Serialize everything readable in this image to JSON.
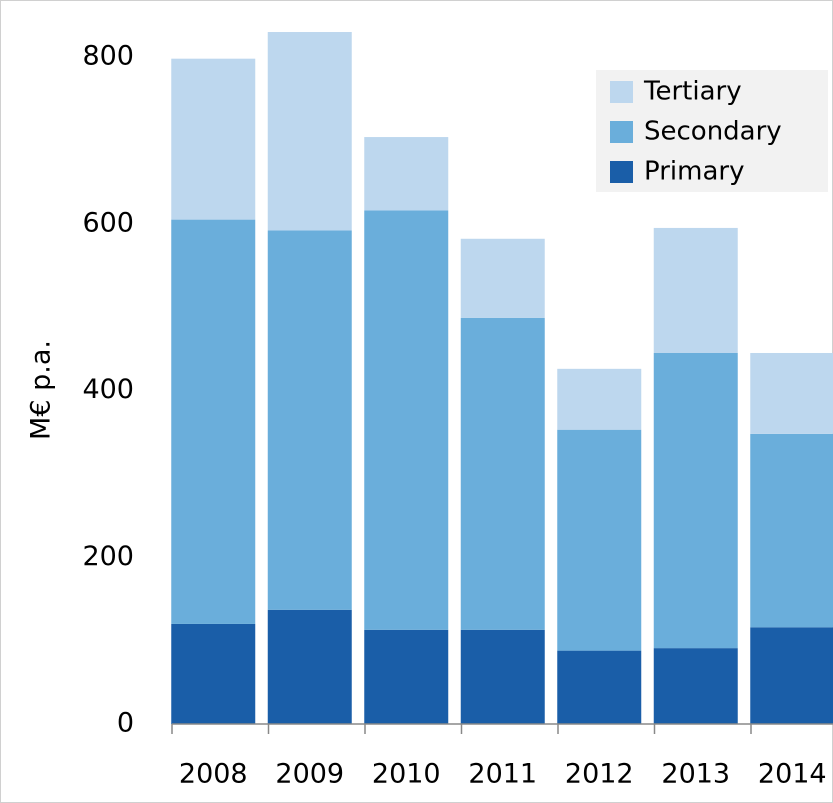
{
  "chart_data": {
    "type": "stacked_bar",
    "y_label": "M€ p.a.",
    "categories": [
      "2008",
      "2009",
      "2010",
      "2011",
      "2012",
      "2013",
      "2014"
    ],
    "series": [
      {
        "name": "Primary",
        "color": "#1a5ea8",
        "values": [
          120,
          137,
          113,
          113,
          88,
          91,
          116
        ]
      },
      {
        "name": "Secondary",
        "color": "#6aaedb",
        "values": [
          485,
          455,
          503,
          374,
          265,
          354,
          232
        ]
      },
      {
        "name": "Tertiary",
        "color": "#bdd7ee",
        "values": [
          193,
          238,
          88,
          95,
          73,
          150,
          97
        ]
      }
    ],
    "ylim": [
      0,
      860
    ],
    "yticks": [
      0,
      200,
      400,
      600,
      800
    ],
    "grid": false,
    "legend": "top-right"
  }
}
